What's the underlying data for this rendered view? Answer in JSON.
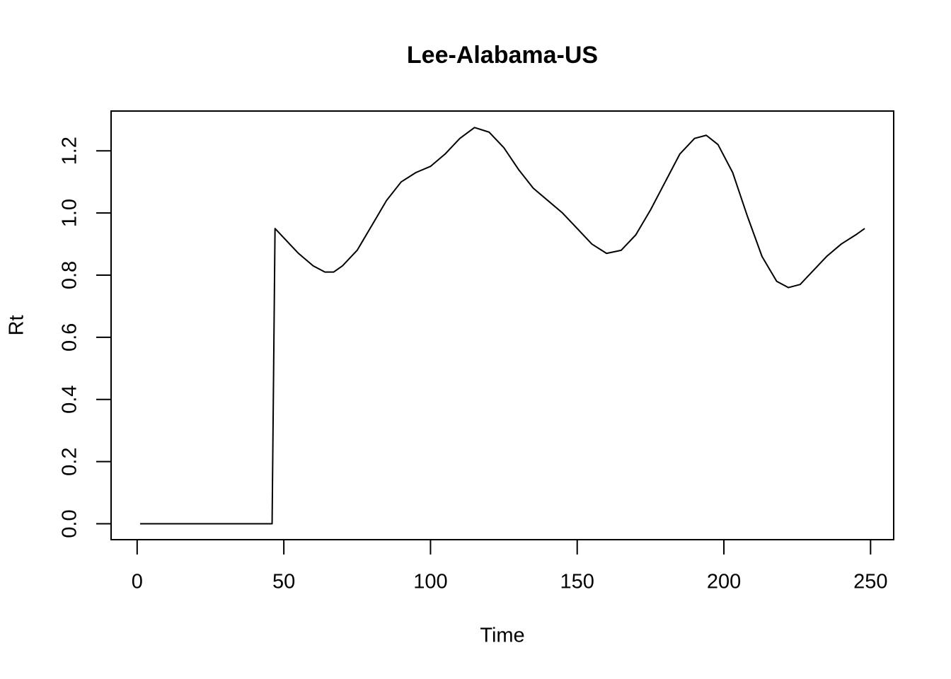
{
  "chart_data": {
    "type": "line",
    "title": "Lee-Alabama-US",
    "x_label": "Time",
    "y_label": "Rt",
    "x": [
      1,
      46,
      47,
      50,
      55,
      60,
      64,
      67,
      70,
      75,
      80,
      85,
      90,
      95,
      100,
      105,
      110,
      115,
      120,
      125,
      130,
      135,
      140,
      145,
      150,
      155,
      160,
      165,
      170,
      175,
      180,
      185,
      190,
      194,
      198,
      203,
      208,
      213,
      218,
      222,
      226,
      230,
      235,
      240,
      245,
      248
    ],
    "values": [
      0,
      0,
      0.95,
      0.92,
      0.87,
      0.83,
      0.81,
      0.81,
      0.83,
      0.88,
      0.96,
      1.04,
      1.1,
      1.13,
      1.15,
      1.19,
      1.24,
      1.275,
      1.26,
      1.21,
      1.14,
      1.08,
      1.04,
      1.0,
      0.95,
      0.9,
      0.87,
      0.88,
      0.93,
      1.01,
      1.1,
      1.19,
      1.24,
      1.25,
      1.22,
      1.13,
      0.99,
      0.86,
      0.78,
      0.76,
      0.77,
      0.81,
      0.86,
      0.9,
      0.93,
      0.95
    ],
    "color": "#000000",
    "xlim": [
      -8.88,
      257.88
    ],
    "xticks": [
      0,
      50,
      100,
      150,
      200,
      250
    ],
    "ylim": [
      -0.0511,
      1.328
    ],
    "yticks": [
      {
        "value": 0,
        "label": "0.0"
      },
      0.2,
      0.4,
      0.6,
      0.8,
      {
        "value": 1,
        "label": "1.0"
      },
      1.2
    ]
  }
}
